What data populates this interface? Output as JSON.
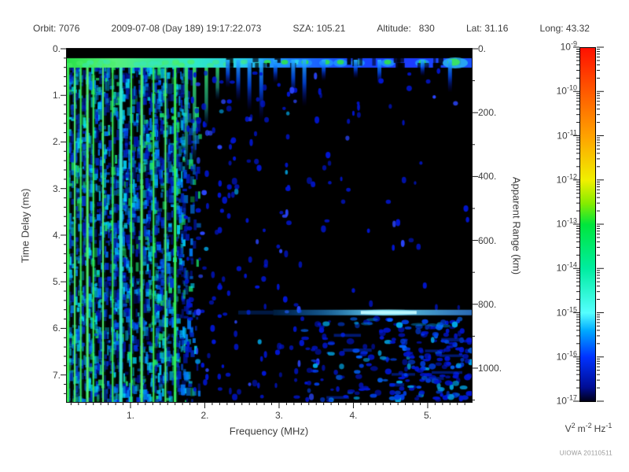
{
  "header": {
    "segments": [
      "Orbit: 7076",
      "2009-07-08 (Day 189) 19:17:22.073",
      "SZA: 105.21",
      "Altitude:   830",
      "Lat: 31.16",
      "Long: 43.32"
    ],
    "fields": {
      "orbit": "7076",
      "date": "2009-07-08",
      "day_of_year": "189",
      "time": "19:17:22.073",
      "sza": "105.21",
      "altitude": "830",
      "lat": "31.16",
      "long": "43.32"
    }
  },
  "watermark": "UIOWA 20110511",
  "chart_data": {
    "type": "heatmap",
    "title": "",
    "xlabel": "Frequency (MHz)",
    "ylabel_left": "Time Delay (ms)",
    "ylabel_right": "Apparent Range (km)",
    "axes": {
      "freq_min": 0.143,
      "freq_max": 5.593,
      "time_max_ms": 7.58,
      "range_max_km": 1106,
      "x_minor_step_mhz": 0.1,
      "y_minor_step_ms": 0.2,
      "y2_minor_step_km": 100
    },
    "x_ticks": [
      {
        "v": 1,
        "label": "1."
      },
      {
        "v": 2,
        "label": "2."
      },
      {
        "v": 3,
        "label": "3."
      },
      {
        "v": 4,
        "label": "4."
      },
      {
        "v": 5,
        "label": "5."
      }
    ],
    "y_ticks_ms": [
      {
        "v": 0,
        "label": "0."
      },
      {
        "v": 1,
        "label": "1."
      },
      {
        "v": 2,
        "label": "2."
      },
      {
        "v": 3,
        "label": "3."
      },
      {
        "v": 4,
        "label": "4."
      },
      {
        "v": 5,
        "label": "5."
      },
      {
        "v": 6,
        "label": "6."
      },
      {
        "v": 7,
        "label": "7."
      }
    ],
    "y_ticks_km": [
      {
        "v": 0,
        "label": "0."
      },
      {
        "v": 200,
        "label": "200."
      },
      {
        "v": 400,
        "label": "400."
      },
      {
        "v": 600,
        "label": "600."
      },
      {
        "v": 800,
        "label": "800."
      },
      {
        "v": 1000,
        "label": "1000."
      }
    ],
    "colorbar": {
      "tick_base": "10",
      "tick_exponents": [
        "-9",
        "-10",
        "-11",
        "-12",
        "-13",
        "-14",
        "-15",
        "-16",
        "-17"
      ],
      "units_text": "V^2 m^-2 Hz^-1",
      "units_tokens": [
        {
          "b": "V",
          "e": "2"
        },
        {
          "b": "m",
          "e": "-2"
        },
        {
          "b": "Hz",
          "e": "-1"
        }
      ],
      "gradient": [
        {
          "p": 0,
          "c": "#ff1000"
        },
        {
          "p": 0.125,
          "c": "#ff5a00"
        },
        {
          "p": 0.25,
          "c": "#ffa200"
        },
        {
          "p": 0.375,
          "c": "#f0f000"
        },
        {
          "p": 0.44,
          "c": "#86ec00"
        },
        {
          "p": 0.5,
          "c": "#00e63c"
        },
        {
          "p": 0.625,
          "c": "#00eda0"
        },
        {
          "p": 0.75,
          "c": "#55ffff"
        },
        {
          "p": 0.8,
          "c": "#00aaff"
        },
        {
          "p": 0.875,
          "c": "#0032ff"
        },
        {
          "p": 0.96,
          "c": "#000d96"
        },
        {
          "p": 1,
          "c": "#000018"
        }
      ]
    },
    "features": {
      "top_echo_band_time_ms": [
        0.2,
        0.42
      ],
      "ionospheric_noise_band_mhz": [
        0.14,
        1.95
      ],
      "plasma_harmonic_stripes_mhz": [
        0.16,
        0.25,
        0.33,
        0.42,
        0.5,
        0.63,
        0.76,
        0.87,
        1.01,
        1.15,
        1.31,
        1.47,
        1.6
      ],
      "surface_echo": {
        "time_delay_ms": 5.66,
        "apparent_range_km": 848,
        "freq_range_mhz": [
          2.92,
          5.59
        ],
        "bright_freq_mhz": [
          4.1,
          4.85
        ]
      },
      "diffuse_echo_region": {
        "freq_range_mhz": [
          3.2,
          5.59
        ],
        "time_range_ms": [
          5.75,
          7.58
        ]
      }
    },
    "render": {
      "seed": 7076,
      "background": "#000000",
      "stripe_color": "#3af052",
      "stripe_alt_color": "#55f06a",
      "stripe_cyan": "#39e8c8",
      "stripe_glow": "rgba(30,255,110,0.32)",
      "noise_palette": [
        "#00d8ff",
        "#0080ff",
        "#0034dd",
        "#19e06a",
        "#0018bb"
      ],
      "dot_color": "#0016d6",
      "dot_bright": "#2b46ff",
      "dot_cyan": "#00a8e8",
      "stripes": [
        {
          "f": 0.16,
          "w": 3
        },
        {
          "f": 0.25,
          "w": 2
        },
        {
          "f": 0.33,
          "w": 2
        },
        {
          "f": 0.42,
          "w": 3
        },
        {
          "f": 0.5,
          "w": 2
        },
        {
          "f": 0.63,
          "w": 2
        },
        {
          "f": 0.76,
          "w": 2
        },
        {
          "f": 0.87,
          "w": 4,
          "c": "#39e8c8"
        },
        {
          "f": 1.01,
          "w": 2
        },
        {
          "f": 1.15,
          "w": 3
        },
        {
          "f": 1.31,
          "w": 2
        },
        {
          "f": 1.47,
          "w": 2
        },
        {
          "f": 1.6,
          "w": 3
        }
      ],
      "short_stripes": [
        {
          "f": 1.75,
          "t": 2.6
        },
        {
          "f": 1.86,
          "t": 2.3
        },
        {
          "f": 2.02,
          "t": 1.5
        },
        {
          "f": 2.17,
          "t": 0.9
        }
      ],
      "icicles": [
        {
          "f": 2.31,
          "t": 0.6
        },
        {
          "f": 2.45,
          "t": 0.9
        },
        {
          "f": 2.6,
          "t": 1.1
        },
        {
          "f": 2.76,
          "t": 1.3
        },
        {
          "f": 2.95,
          "t": 0.5
        },
        {
          "f": 3.19,
          "t": 0.8
        },
        {
          "f": 3.34,
          "t": 1.0
        },
        {
          "f": 3.6,
          "t": 0.45
        },
        {
          "f": 4.03,
          "t": 0.4
        },
        {
          "f": 4.35,
          "t": 0.55
        },
        {
          "f": 4.93,
          "t": 0.35
        },
        {
          "f": 5.3,
          "t": 0.7
        }
      ],
      "dot_columns_mhz": [
        1.78,
        1.9,
        2.0,
        2.1,
        2.22,
        2.35,
        2.43,
        2.6,
        2.72,
        2.8,
        3.0,
        3.1,
        3.25
      ],
      "counts": {
        "noise_blocks": 2400,
        "column_dots": 120,
        "free_dots": 120,
        "cloud_blobs": 260,
        "streaks": 10
      }
    }
  }
}
